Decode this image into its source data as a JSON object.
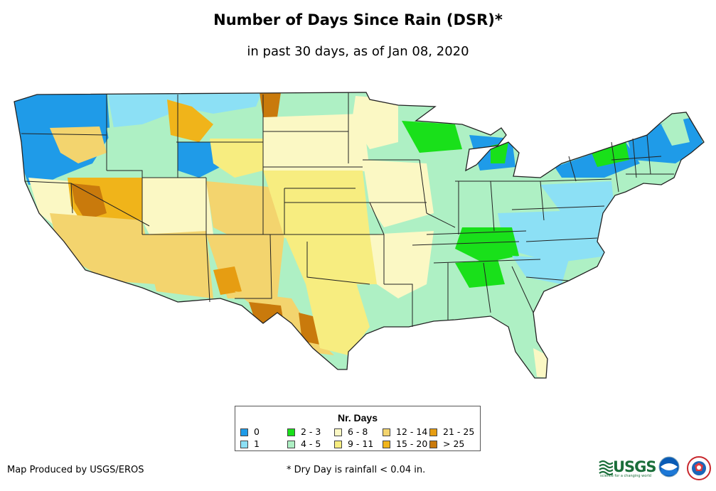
{
  "title": "Number of Days Since Rain (DSR)*",
  "subtitle": "in past 30 days, as of Jan 08, 2020",
  "legend": {
    "title": "Nr. Days",
    "items": [
      {
        "label": "0",
        "color": "#1f9be8"
      },
      {
        "label": "1",
        "color": "#8ce0f5"
      },
      {
        "label": "2 - 3",
        "color": "#19e01a"
      },
      {
        "label": "4 - 5",
        "color": "#aef0c4"
      },
      {
        "label": "6 - 8",
        "color": "#fbf8c4"
      },
      {
        "label": "9 - 11",
        "color": "#f7ed80"
      },
      {
        "label": "12 - 14",
        "color": "#f3d46e"
      },
      {
        "label": "15 - 20",
        "color": "#f0b41a"
      },
      {
        "label": "21 - 25",
        "color": "#e69d12"
      },
      {
        "label": "> 25",
        "color": "#c97a0c"
      }
    ]
  },
  "credit": "Map Produced by USGS/EROS",
  "footnote": "* Dry Day is rainfall < 0.04 in.",
  "logos": {
    "usgs": "USGS",
    "usgs_tagline": "science for a changing world",
    "noaa": "noaa"
  }
}
